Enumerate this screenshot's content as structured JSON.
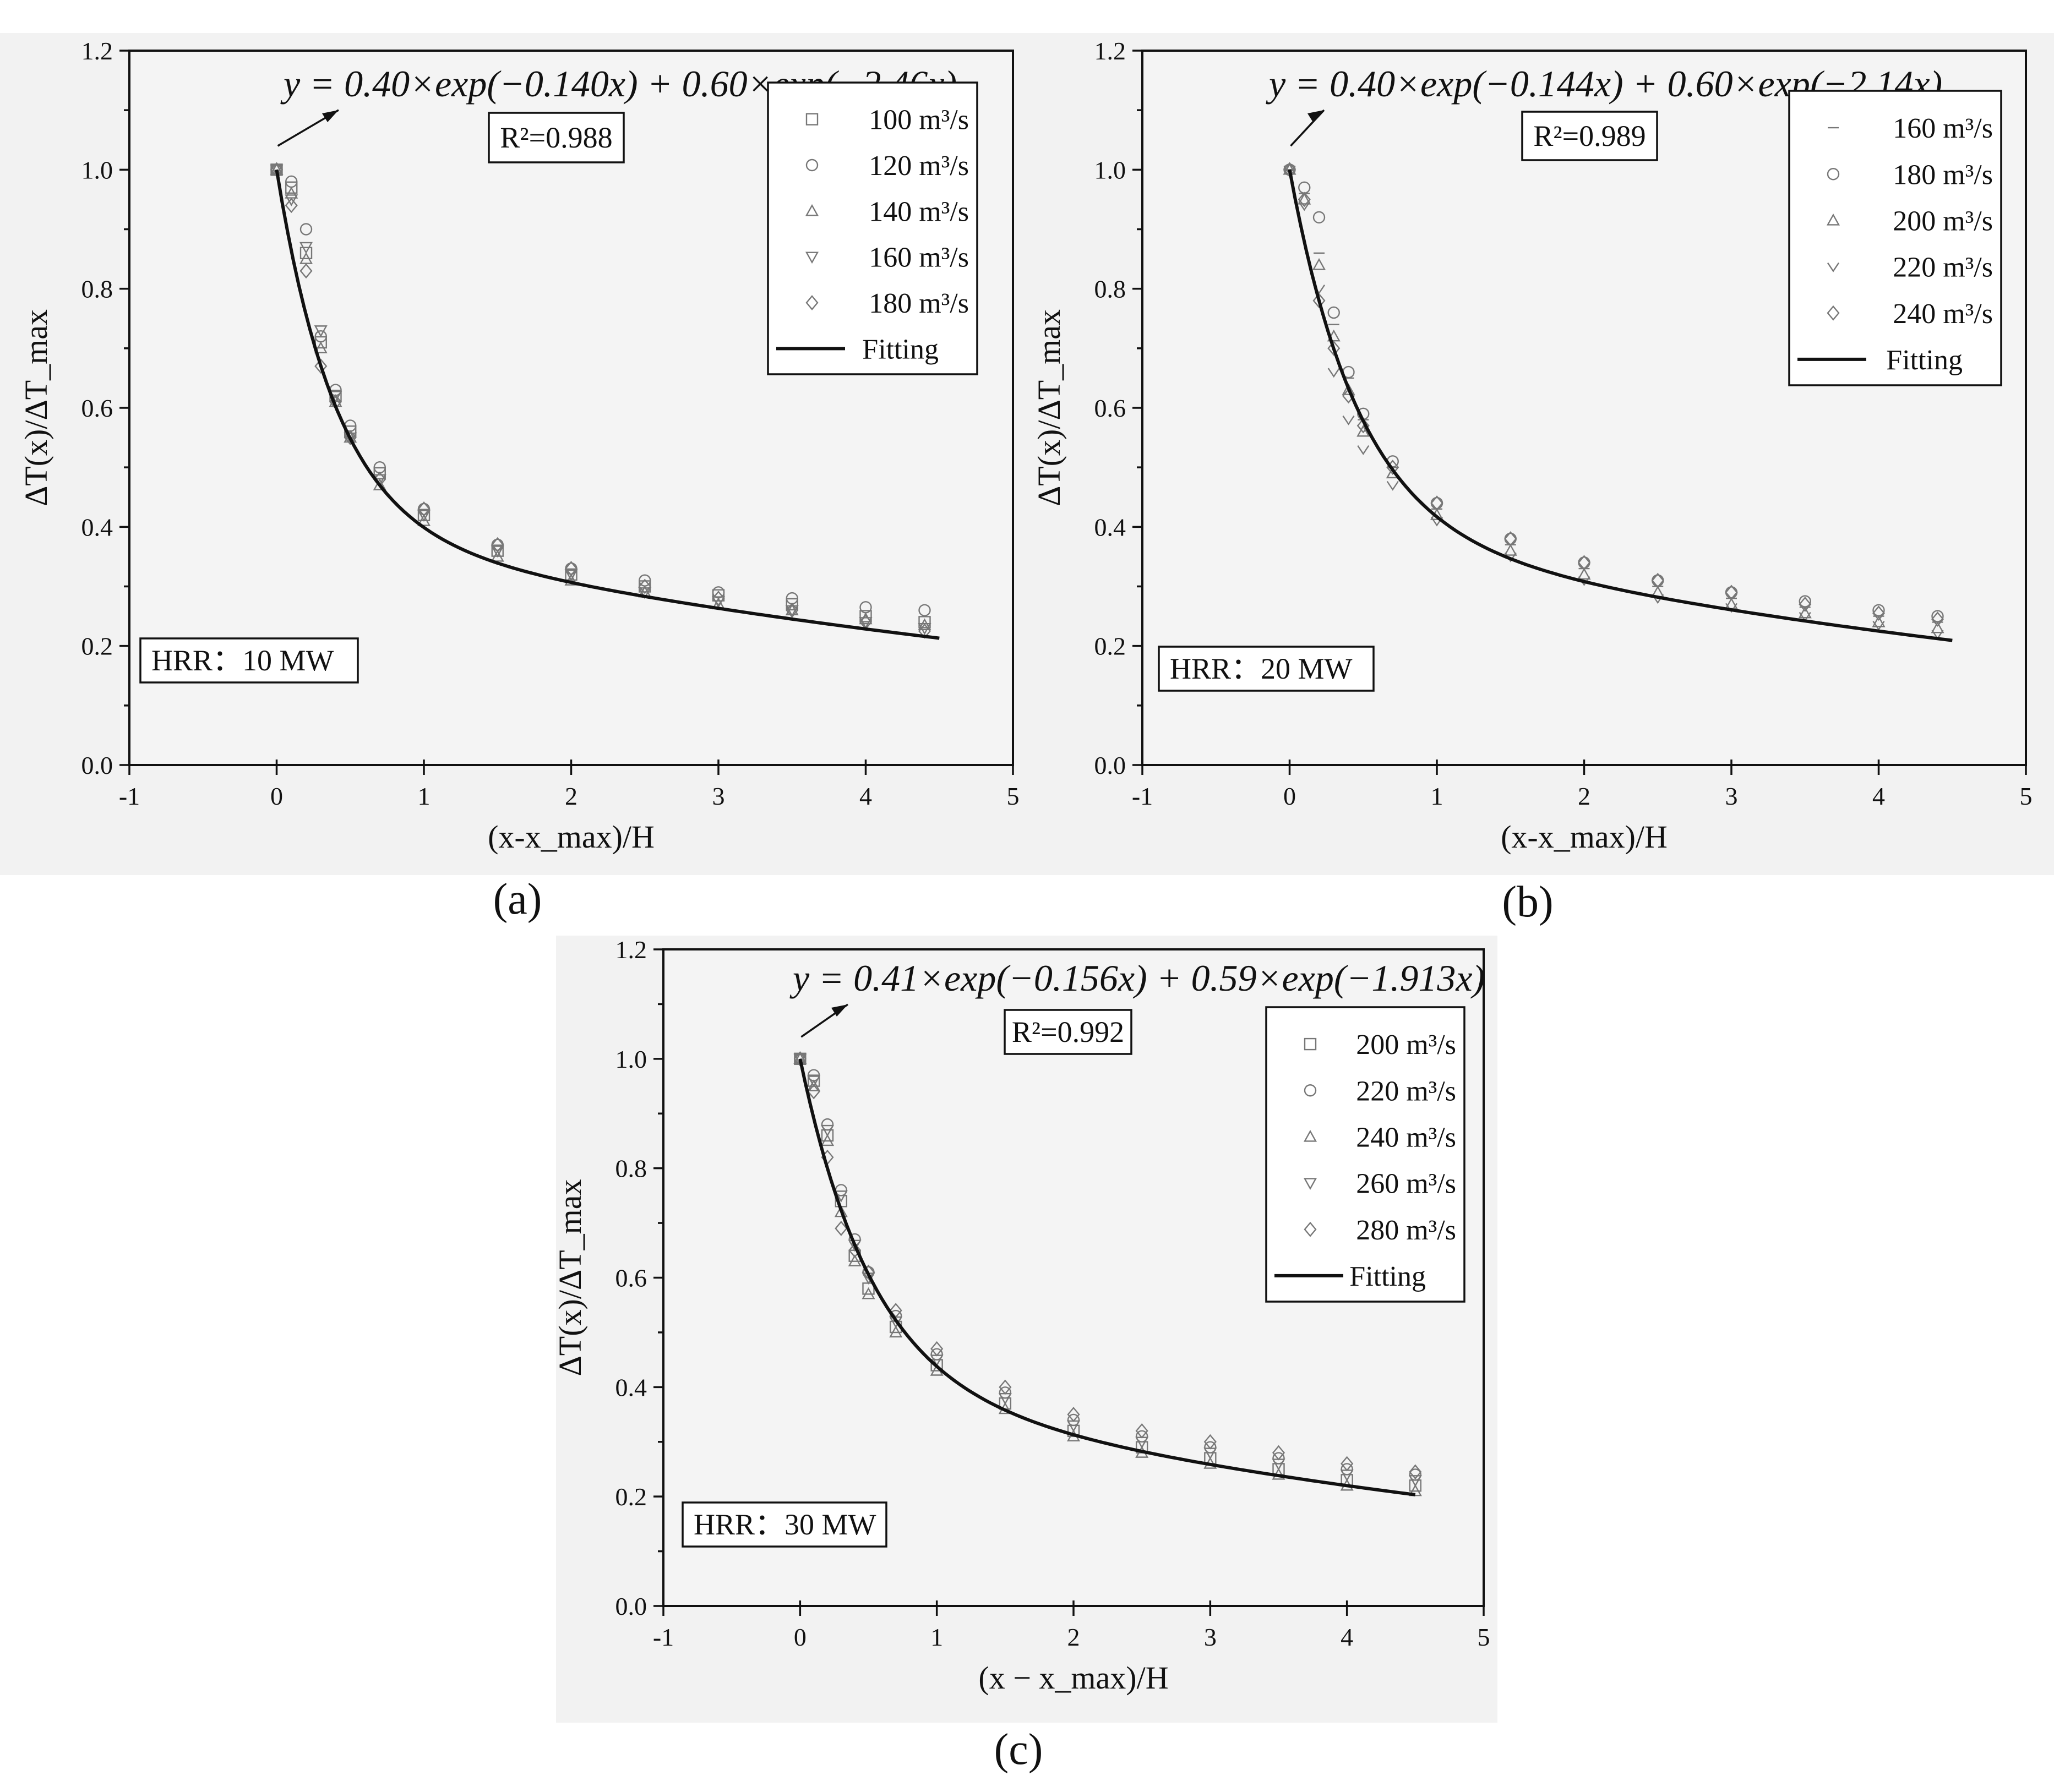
{
  "chart_data": [
    {
      "panel": "a",
      "caption": "(a)",
      "type": "scatter",
      "equation": "y = 0.40×exp(−0.140x) + 0.60×exp(−2.46x)",
      "r2": "R²=0.988",
      "hrr": "HRR：10 MW",
      "xlabel": "(x-x_max)/H",
      "ylabel": "ΔT(x)/ΔT_max",
      "xlim": [
        -1,
        5
      ],
      "ylim": [
        0.0,
        1.2
      ],
      "xticks": [
        "-1",
        "0",
        "1",
        "2",
        "3",
        "4",
        "5"
      ],
      "yticks": [
        "0.0",
        "0.2",
        "0.4",
        "0.6",
        "0.8",
        "1.0",
        "1.2"
      ],
      "legend_position": "top-right",
      "fit": {
        "name": "Fitting",
        "a1": 0.4,
        "b1": 0.14,
        "a2": 0.6,
        "b2": 2.46,
        "x_range": [
          0,
          4.5
        ]
      },
      "series": [
        {
          "name": "100 m³/s",
          "marker": "square",
          "x": [
            0.0,
            0.1,
            0.2,
            0.3,
            0.4,
            0.5,
            0.7,
            1.0,
            1.5,
            2.0,
            2.5,
            3.0,
            3.5,
            4.0,
            4.4
          ],
          "y": [
            1.0,
            0.97,
            0.86,
            0.71,
            0.62,
            0.56,
            0.49,
            0.42,
            0.36,
            0.32,
            0.3,
            0.285,
            0.27,
            0.25,
            0.24
          ]
        },
        {
          "name": "120 m³/s",
          "marker": "circle",
          "x": [
            0.0,
            0.1,
            0.2,
            0.3,
            0.4,
            0.5,
            0.7,
            1.0,
            1.5,
            2.0,
            2.5,
            3.0,
            3.5,
            4.0,
            4.4
          ],
          "y": [
            1.0,
            0.98,
            0.9,
            0.72,
            0.63,
            0.57,
            0.5,
            0.43,
            0.37,
            0.33,
            0.31,
            0.29,
            0.28,
            0.265,
            0.26
          ]
        },
        {
          "name": "140 m³/s",
          "marker": "triangle-up",
          "x": [
            0.0,
            0.1,
            0.2,
            0.3,
            0.4,
            0.5,
            0.7,
            1.0,
            1.5,
            2.0,
            2.5,
            3.0,
            3.5,
            4.0,
            4.4
          ],
          "y": [
            1.0,
            0.96,
            0.85,
            0.7,
            0.61,
            0.55,
            0.47,
            0.41,
            0.35,
            0.31,
            0.29,
            0.27,
            0.26,
            0.245,
            0.235
          ]
        },
        {
          "name": "160 m³/s",
          "marker": "triangle-down",
          "x": [
            0.0,
            0.1,
            0.2,
            0.3,
            0.4,
            0.5,
            0.7,
            1.0,
            1.5,
            2.0,
            2.5,
            3.0,
            3.5,
            4.0,
            4.4
          ],
          "y": [
            1.0,
            0.95,
            0.87,
            0.73,
            0.62,
            0.55,
            0.48,
            0.42,
            0.36,
            0.32,
            0.29,
            0.275,
            0.26,
            0.24,
            0.23
          ]
        },
        {
          "name": "180 m³/s",
          "marker": "diamond",
          "x": [
            0.0,
            0.1,
            0.2,
            0.3,
            0.4,
            0.5,
            0.7,
            1.0,
            1.5,
            2.0,
            2.5,
            3.0,
            3.5,
            4.0,
            4.4
          ],
          "y": [
            1.0,
            0.94,
            0.83,
            0.67,
            0.61,
            0.55,
            0.48,
            0.43,
            0.37,
            0.33,
            0.3,
            0.28,
            0.26,
            0.24,
            0.225
          ]
        }
      ]
    },
    {
      "panel": "b",
      "caption": "(b)",
      "type": "scatter",
      "equation": "y = 0.40×exp(−0.144x) + 0.60×exp(−2.14x)",
      "r2": "R²=0.989",
      "hrr": "HRR：20 MW",
      "xlabel": "(x-x_max)/H",
      "ylabel": "ΔT(x)/ΔT_max",
      "xlim": [
        -1,
        5
      ],
      "ylim": [
        0.0,
        1.2
      ],
      "xticks": [
        "-1",
        "0",
        "1",
        "2",
        "3",
        "4",
        "5"
      ],
      "yticks": [
        "0.0",
        "0.2",
        "0.4",
        "0.6",
        "0.8",
        "1.0",
        "1.2"
      ],
      "legend_position": "top-right",
      "fit": {
        "name": "Fitting",
        "a1": 0.4,
        "b1": 0.144,
        "a2": 0.6,
        "b2": 2.14,
        "x_range": [
          0,
          4.5
        ]
      },
      "series": [
        {
          "name": "160 m³/s",
          "marker": "dash",
          "x": [
            0.0,
            0.1,
            0.2,
            0.3,
            0.4,
            0.5,
            0.7,
            1.0,
            1.5,
            2.0,
            2.5,
            3.0,
            3.5,
            4.0,
            4.4
          ],
          "y": [
            1.0,
            0.96,
            0.86,
            0.74,
            0.65,
            0.58,
            0.5,
            0.43,
            0.37,
            0.33,
            0.3,
            0.28,
            0.265,
            0.25,
            0.24
          ]
        },
        {
          "name": "180 m³/s",
          "marker": "circle",
          "x": [
            0.0,
            0.1,
            0.2,
            0.3,
            0.4,
            0.5,
            0.7,
            1.0,
            1.5,
            2.0,
            2.5,
            3.0,
            3.5,
            4.0,
            4.4
          ],
          "y": [
            1.0,
            0.97,
            0.92,
            0.76,
            0.66,
            0.59,
            0.51,
            0.44,
            0.38,
            0.34,
            0.31,
            0.29,
            0.275,
            0.26,
            0.25
          ]
        },
        {
          "name": "200 m³/s",
          "marker": "triangle-up",
          "x": [
            0.0,
            0.1,
            0.2,
            0.3,
            0.4,
            0.5,
            0.7,
            1.0,
            1.5,
            2.0,
            2.5,
            3.0,
            3.5,
            4.0,
            4.4
          ],
          "y": [
            1.0,
            0.95,
            0.84,
            0.72,
            0.63,
            0.56,
            0.49,
            0.42,
            0.36,
            0.32,
            0.29,
            0.27,
            0.255,
            0.24,
            0.23
          ]
        },
        {
          "name": "220 m³/s",
          "marker": "v",
          "x": [
            0.0,
            0.1,
            0.2,
            0.3,
            0.4,
            0.5,
            0.7,
            1.0,
            1.5,
            2.0,
            2.5,
            3.0,
            3.5,
            4.0,
            4.4
          ],
          "y": [
            1.0,
            0.94,
            0.8,
            0.66,
            0.58,
            0.53,
            0.47,
            0.41,
            0.35,
            0.31,
            0.28,
            0.265,
            0.25,
            0.235,
            0.22
          ]
        },
        {
          "name": "240 m³/s",
          "marker": "diamond",
          "x": [
            0.0,
            0.1,
            0.2,
            0.3,
            0.4,
            0.5,
            0.7,
            1.0,
            1.5,
            2.0,
            2.5,
            3.0,
            3.5,
            4.0,
            4.4
          ],
          "y": [
            1.0,
            0.95,
            0.78,
            0.7,
            0.62,
            0.57,
            0.5,
            0.44,
            0.38,
            0.34,
            0.31,
            0.29,
            0.27,
            0.255,
            0.245
          ]
        }
      ]
    },
    {
      "panel": "c",
      "caption": "(c)",
      "type": "scatter",
      "equation": "y = 0.41×exp(−0.156x) + 0.59×exp(−1.913x)",
      "r2": "R²=0.992",
      "hrr": "HRR：30 MW",
      "xlabel": "(x − x_max)/H",
      "ylabel": "ΔT(x)/ΔT_max",
      "xlim": [
        -1,
        5
      ],
      "ylim": [
        0.0,
        1.2
      ],
      "xticks": [
        "-1",
        "0",
        "1",
        "2",
        "3",
        "4",
        "5"
      ],
      "yticks": [
        "0.0",
        "0.2",
        "0.4",
        "0.6",
        "0.8",
        "1.0",
        "1.2"
      ],
      "legend_position": "top-right",
      "fit": {
        "name": "Fitting",
        "a1": 0.41,
        "b1": 0.156,
        "a2": 0.59,
        "b2": 1.913,
        "x_range": [
          0,
          4.5
        ]
      },
      "series": [
        {
          "name": "200 m³/s",
          "marker": "square",
          "x": [
            0.0,
            0.1,
            0.2,
            0.3,
            0.4,
            0.5,
            0.7,
            1.0,
            1.5,
            2.0,
            2.5,
            3.0,
            3.5,
            4.0,
            4.5
          ],
          "y": [
            1.0,
            0.96,
            0.86,
            0.74,
            0.64,
            0.58,
            0.51,
            0.44,
            0.37,
            0.32,
            0.29,
            0.27,
            0.25,
            0.23,
            0.22
          ]
        },
        {
          "name": "220 m³/s",
          "marker": "circle",
          "x": [
            0.0,
            0.1,
            0.2,
            0.3,
            0.4,
            0.5,
            0.7,
            1.0,
            1.5,
            2.0,
            2.5,
            3.0,
            3.5,
            4.0,
            4.5
          ],
          "y": [
            1.0,
            0.97,
            0.88,
            0.76,
            0.67,
            0.61,
            0.53,
            0.46,
            0.39,
            0.34,
            0.31,
            0.29,
            0.27,
            0.25,
            0.24
          ]
        },
        {
          "name": "240 m³/s",
          "marker": "triangle-up",
          "x": [
            0.0,
            0.1,
            0.2,
            0.3,
            0.4,
            0.5,
            0.7,
            1.0,
            1.5,
            2.0,
            2.5,
            3.0,
            3.5,
            4.0,
            4.5
          ],
          "y": [
            1.0,
            0.95,
            0.85,
            0.72,
            0.63,
            0.57,
            0.5,
            0.43,
            0.36,
            0.31,
            0.28,
            0.26,
            0.24,
            0.22,
            0.21
          ]
        },
        {
          "name": "260 m³/s",
          "marker": "triangle-down",
          "x": [
            0.0,
            0.1,
            0.2,
            0.3,
            0.4,
            0.5,
            0.7,
            1.0,
            1.5,
            2.0,
            2.5,
            3.0,
            3.5,
            4.0,
            4.5
          ],
          "y": [
            1.0,
            0.96,
            0.87,
            0.75,
            0.66,
            0.6,
            0.52,
            0.45,
            0.38,
            0.33,
            0.3,
            0.28,
            0.26,
            0.24,
            0.23
          ]
        },
        {
          "name": "280 m³/s",
          "marker": "diamond",
          "x": [
            0.0,
            0.1,
            0.2,
            0.3,
            0.4,
            0.5,
            0.7,
            1.0,
            1.5,
            2.0,
            2.5,
            3.0,
            3.5,
            4.0,
            4.5
          ],
          "y": [
            1.0,
            0.94,
            0.82,
            0.69,
            0.65,
            0.61,
            0.54,
            0.47,
            0.4,
            0.35,
            0.32,
            0.3,
            0.28,
            0.26,
            0.245
          ]
        }
      ]
    }
  ]
}
